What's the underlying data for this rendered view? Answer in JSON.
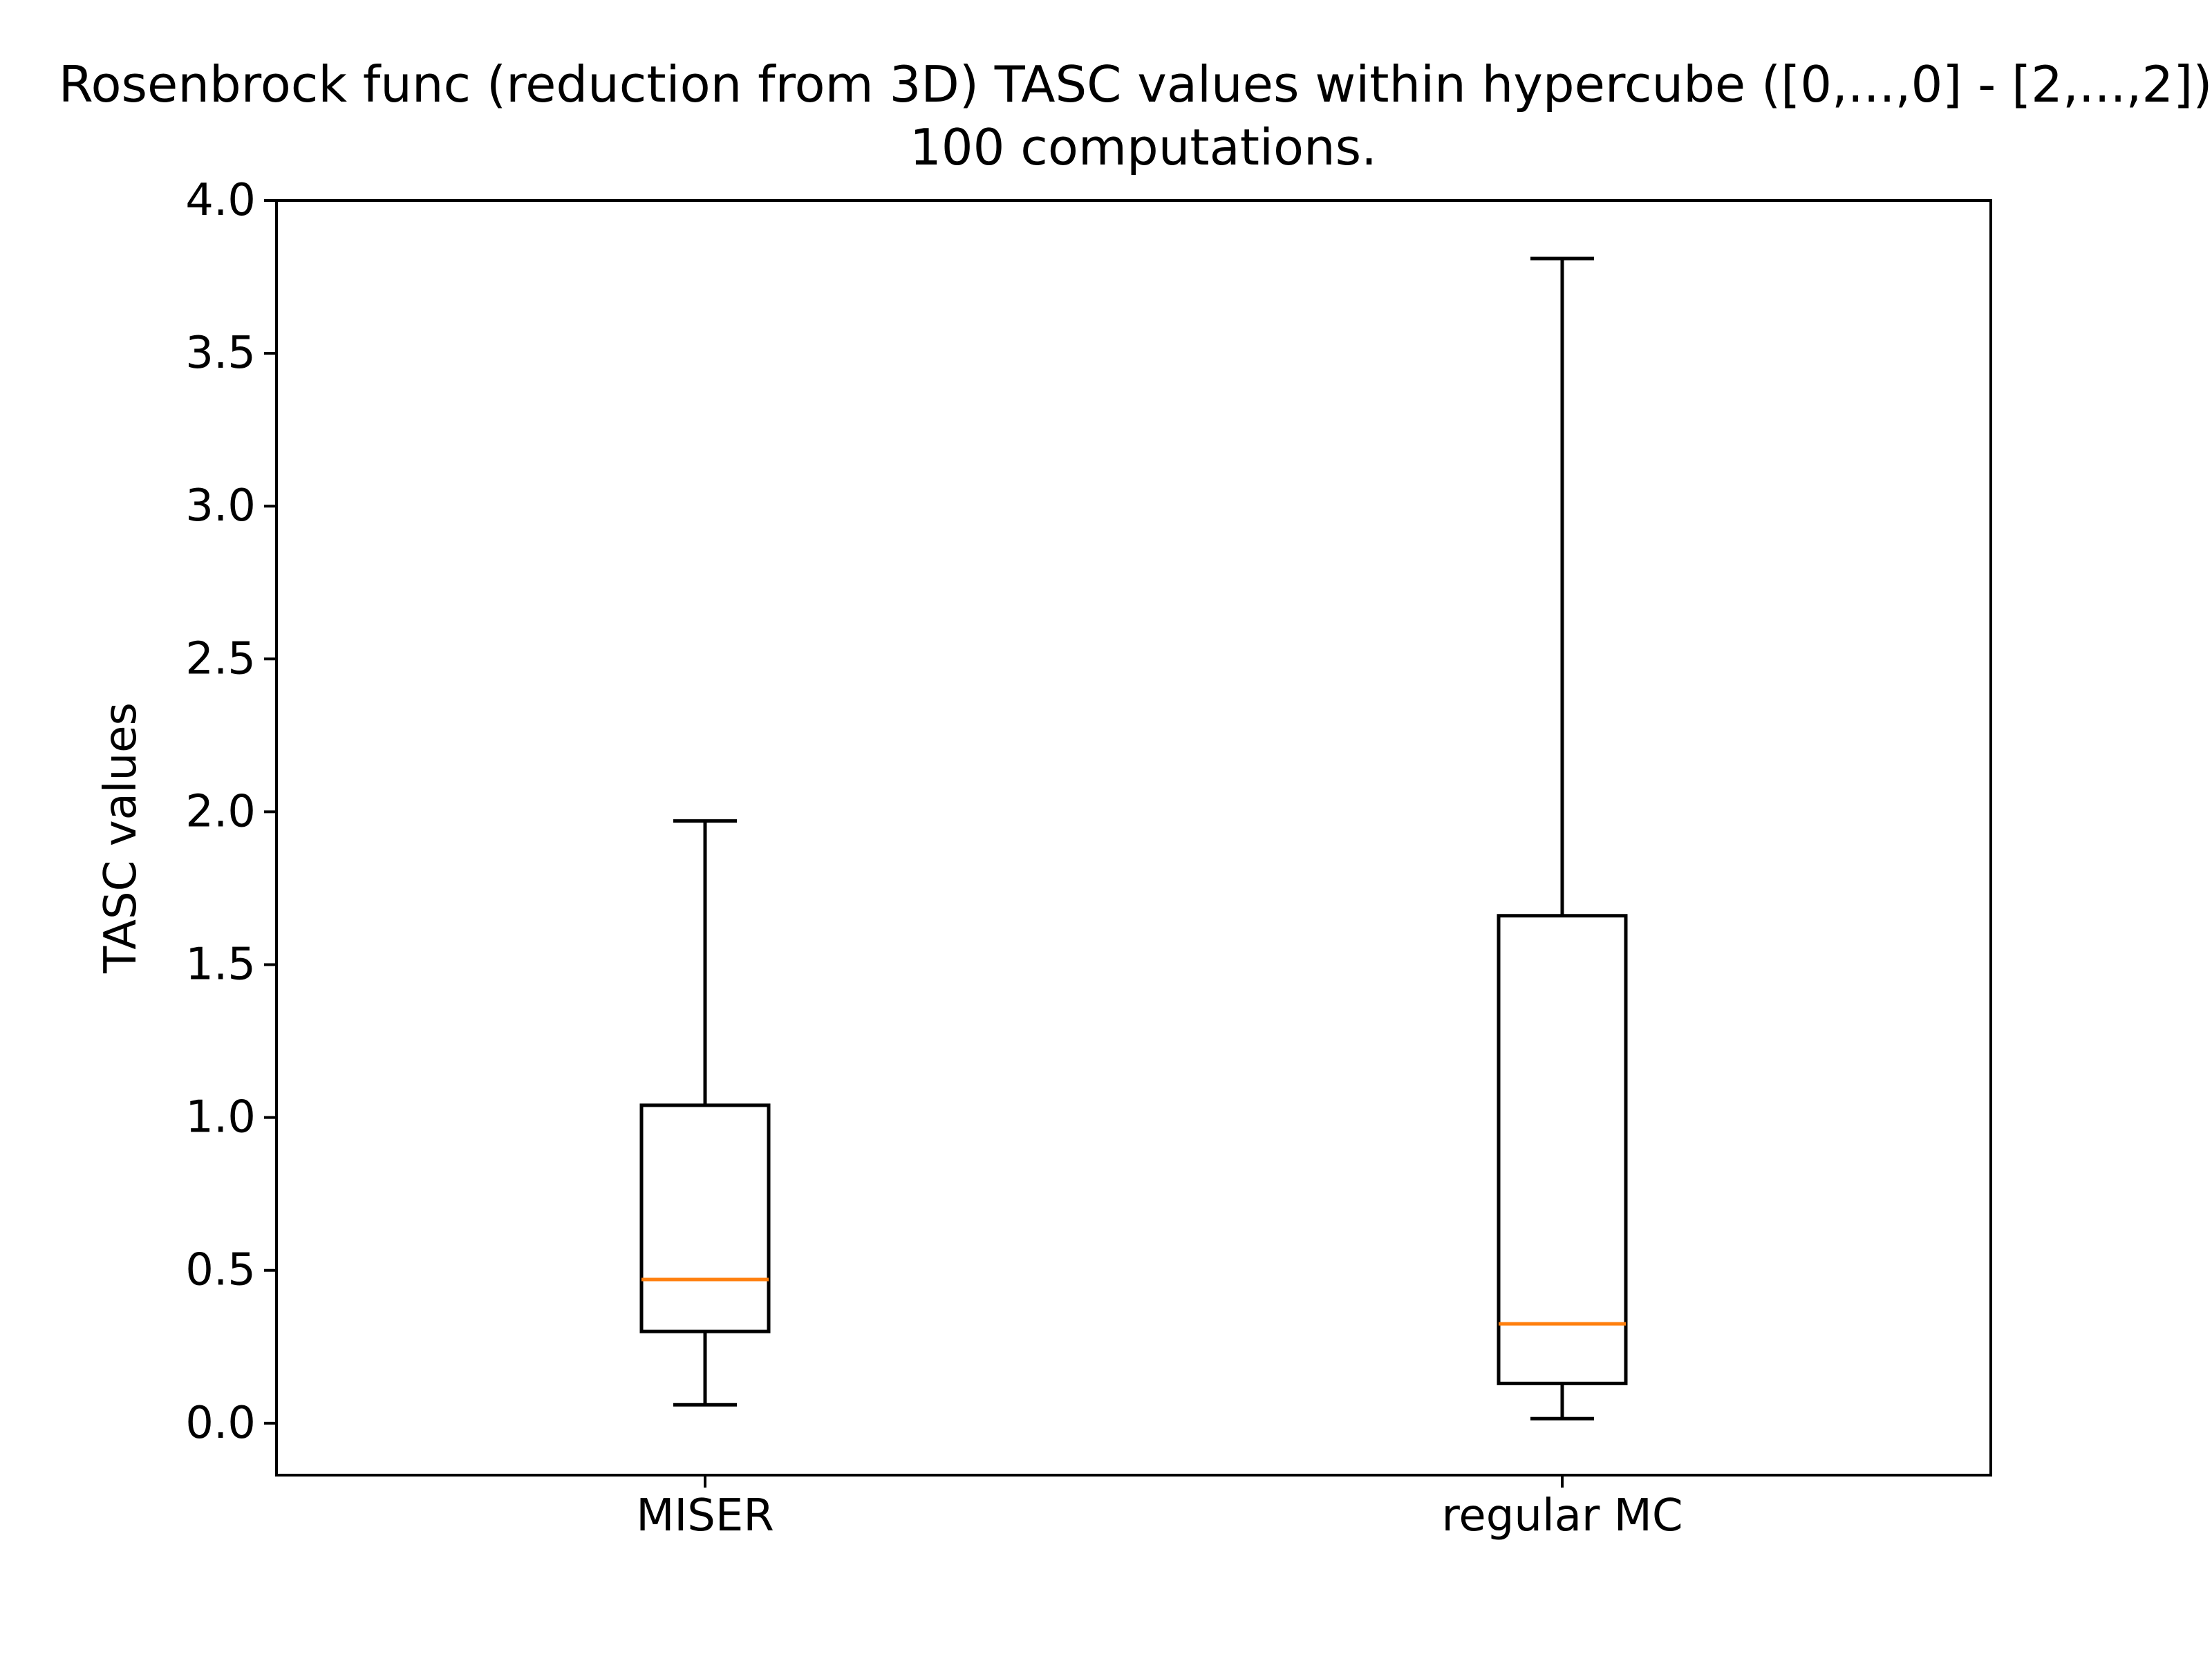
{
  "chart_data": {
    "type": "box",
    "title_lines": [
      "Rosenbrock func (reduction from 3D) TASC values within hypercube ([0,...,0] - [2,...,2]).",
      "100 computations."
    ],
    "xlabel": "",
    "ylabel": "TASC values",
    "categories": [
      "MISER",
      "regular MC"
    ],
    "ylim": [
      -0.17,
      4.0
    ],
    "yticks": [
      0.0,
      0.5,
      1.0,
      1.5,
      2.0,
      2.5,
      3.0,
      3.5,
      4.0
    ],
    "ytick_labels": [
      "0.0",
      "0.5",
      "1.0",
      "1.5",
      "2.0",
      "2.5",
      "3.0",
      "3.5",
      "4.0"
    ],
    "boxes": [
      {
        "category": "MISER",
        "whisker_low": 0.06,
        "q1": 0.3,
        "median": 0.47,
        "q3": 1.04,
        "whisker_high": 1.97
      },
      {
        "category": "regular MC",
        "whisker_low": 0.015,
        "q1": 0.13,
        "median": 0.325,
        "q3": 1.66,
        "whisker_high": 3.81
      }
    ],
    "grid": false,
    "colors": {
      "box": "#000000",
      "median": "#ff7f0e"
    }
  }
}
